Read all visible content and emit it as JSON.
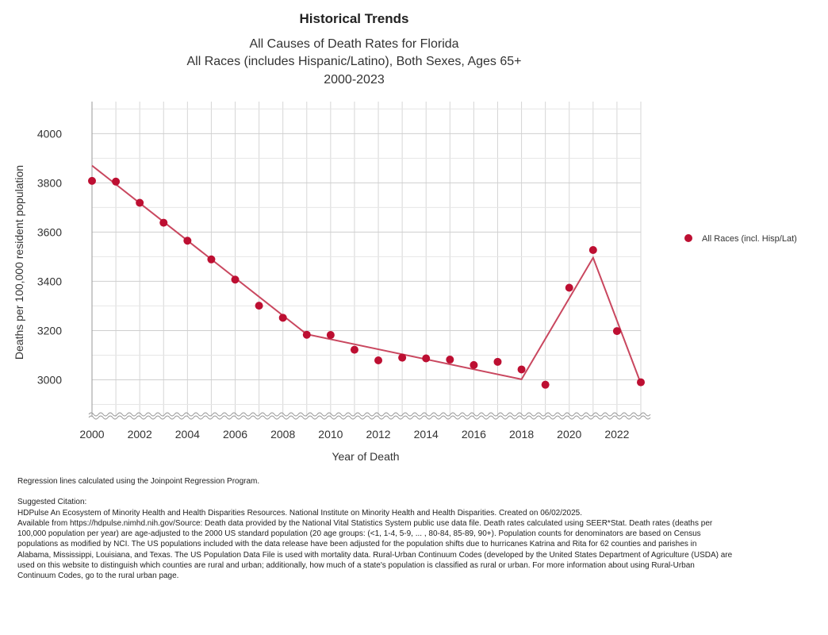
{
  "header": {
    "title": "Historical Trends",
    "subtitle_lines": [
      "All Causes of Death Rates for Florida",
      "All Races (includes Hispanic/Latino), Both Sexes, Ages 65+",
      "2000-2023"
    ]
  },
  "chart_data": {
    "type": "scatter",
    "xlabel": "Year of Death",
    "ylabel": "Deaths per 100,000 resident population",
    "xlim": [
      2000,
      2023
    ],
    "ylim": [
      2850,
      4130
    ],
    "x_ticks": [
      2000,
      2002,
      2004,
      2006,
      2008,
      2010,
      2012,
      2014,
      2016,
      2018,
      2020,
      2022
    ],
    "y_ticks": [
      3000,
      3200,
      3400,
      3600,
      3800,
      4000
    ],
    "grid": true,
    "axis_break": true,
    "legend_position": "right",
    "series": [
      {
        "name": "All Races (incl. Hisp/Lat)",
        "color": "#bd0f32",
        "points": [
          {
            "x": 2000,
            "y": 3808
          },
          {
            "x": 2001,
            "y": 3805
          },
          {
            "x": 2002,
            "y": 3719
          },
          {
            "x": 2003,
            "y": 3638
          },
          {
            "x": 2004,
            "y": 3565
          },
          {
            "x": 2005,
            "y": 3489
          },
          {
            "x": 2006,
            "y": 3407
          },
          {
            "x": 2007,
            "y": 3301
          },
          {
            "x": 2008,
            "y": 3252
          },
          {
            "x": 2009,
            "y": 3183
          },
          {
            "x": 2010,
            "y": 3182
          },
          {
            "x": 2011,
            "y": 3122
          },
          {
            "x": 2012,
            "y": 3079
          },
          {
            "x": 2013,
            "y": 3090
          },
          {
            "x": 2014,
            "y": 3087
          },
          {
            "x": 2015,
            "y": 3082
          },
          {
            "x": 2016,
            "y": 3060
          },
          {
            "x": 2017,
            "y": 3073
          },
          {
            "x": 2018,
            "y": 3042
          },
          {
            "x": 2019,
            "y": 2980
          },
          {
            "x": 2020,
            "y": 3374
          },
          {
            "x": 2021,
            "y": 3527
          },
          {
            "x": 2022,
            "y": 3198
          },
          {
            "x": 2023,
            "y": 2990
          }
        ]
      }
    ],
    "regression": {
      "color": "#c9475f",
      "points": [
        {
          "x": 2000,
          "y": 3870
        },
        {
          "x": 2009,
          "y": 3185
        },
        {
          "x": 2018,
          "y": 3002
        },
        {
          "x": 2021,
          "y": 3496
        },
        {
          "x": 2023,
          "y": 2985
        }
      ]
    }
  },
  "footnotes": {
    "regression_note": "Regression lines calculated using the Joinpoint Regression Program.",
    "citation_heading": "Suggested Citation:",
    "citation_lines": [
      "HDPulse An Ecosystem of Minority Health and Health Disparities Resources. National Institute on Minority Health and Health Disparities. Created on 06/02/2025.",
      "Available from https://hdpulse.nimhd.nih.gov/Source: Death data provided by the National Vital Statistics System public use data file. Death rates calculated using SEER*Stat. Death rates (deaths per",
      "100,000 population per year) are age-adjusted to the 2000 US standard population (20 age groups: (<1, 1-4, 5-9, ... , 80-84, 85-89, 90+). Population counts for denominators are based on Census",
      "populations as modified by NCI. The US populations included with the data release have been adjusted for the population shifts due to hurricanes Katrina and Rita for 62 counties and parishes in",
      "Alabama, Mississippi, Louisiana, and Texas. The US Population Data File is used with mortality data. Rural-Urban Continuum Codes (developed by the United States Department of Agriculture (USDA) are",
      "used on this website to distinguish which counties are rural and urban; additionally, how much of a state's population is classified as rural or urban. For more information about using Rural-Urban",
      "Continuum Codes, go to the rural urban page."
    ]
  }
}
